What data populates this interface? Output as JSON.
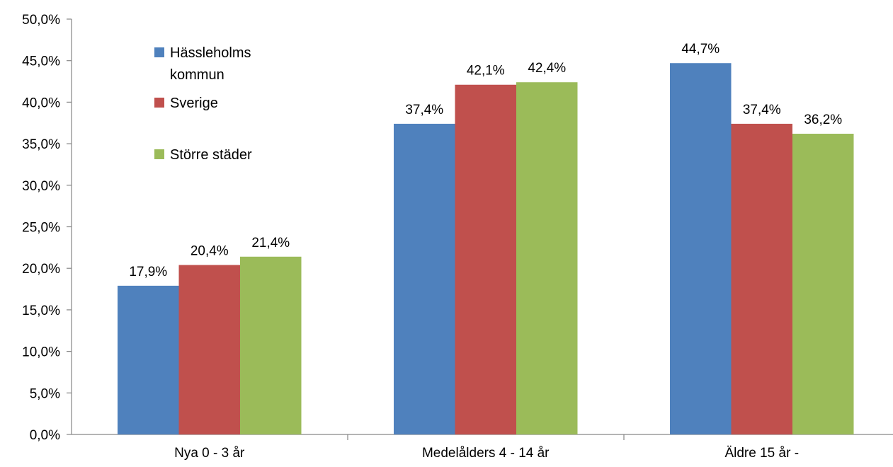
{
  "chart_data": {
    "type": "bar",
    "categories": [
      "Nya 0 - 3 år",
      "Medelålders 4 - 14 år",
      "Äldre 15 år -"
    ],
    "series": [
      {
        "name": "Hässleholms kommun",
        "color": "#4F81BD",
        "values": [
          17.9,
          37.4,
          44.7
        ]
      },
      {
        "name": "Sverige",
        "color": "#C0504D",
        "values": [
          20.4,
          42.1,
          37.4
        ]
      },
      {
        "name": "Större städer",
        "color": "#9BBB59",
        "values": [
          21.4,
          42.4,
          36.2
        ]
      }
    ],
    "data_labels": [
      [
        "17,9%",
        "37,4%",
        "44,7%"
      ],
      [
        "20,4%",
        "42,1%",
        "37,4%"
      ],
      [
        "21,4%",
        "42,4%",
        "36,2%"
      ]
    ],
    "legend_lines": [
      [
        "Hässleholms",
        "kommun"
      ],
      [
        "Sverige"
      ],
      [
        "Större städer"
      ]
    ],
    "y_tick_labels": [
      "0,0%",
      "5,0%",
      "10,0%",
      "15,0%",
      "20,0%",
      "25,0%",
      "30,0%",
      "35,0%",
      "40,0%",
      "45,0%",
      "50,0%"
    ],
    "ylim": [
      0,
      50
    ],
    "y_step": 5,
    "grid": false,
    "legend_position": "top-left"
  }
}
